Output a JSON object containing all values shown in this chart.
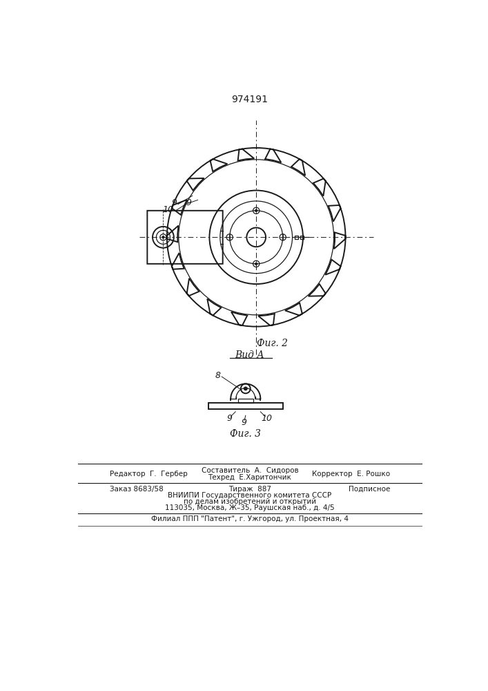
{
  "patent_number": "974191",
  "background_color": "#ffffff",
  "line_color": "#1a1a1a",
  "fig2_caption": "Фиг. 2",
  "fig3_caption": "Фиг. 3",
  "vida_label": "Вид А",
  "footer_line1_left": "Редактор  Г.  Гербер",
  "footer_line1_center_top": "Составитель  А.  Сидоров",
  "footer_line1_center_bot": "Техред  Е.Харитончик",
  "footer_line1_right": "Корректор  Е. Рошко",
  "footer_line2_left": "Заказ 8683/58",
  "footer_line2_center": "Тираж  887",
  "footer_line2_right": "Подписное",
  "footer_vniiipi": "ВНИИПИ Государственного комитета СССР",
  "footer_dela": "по делам изобретений и открытий",
  "footer_address": "113035, Москва, Ж–35, Раушская наб., д. 4/5",
  "footer_filial": "Филиал ППП \"Патент\", г. Ужгород, ул. Проектная, 4"
}
